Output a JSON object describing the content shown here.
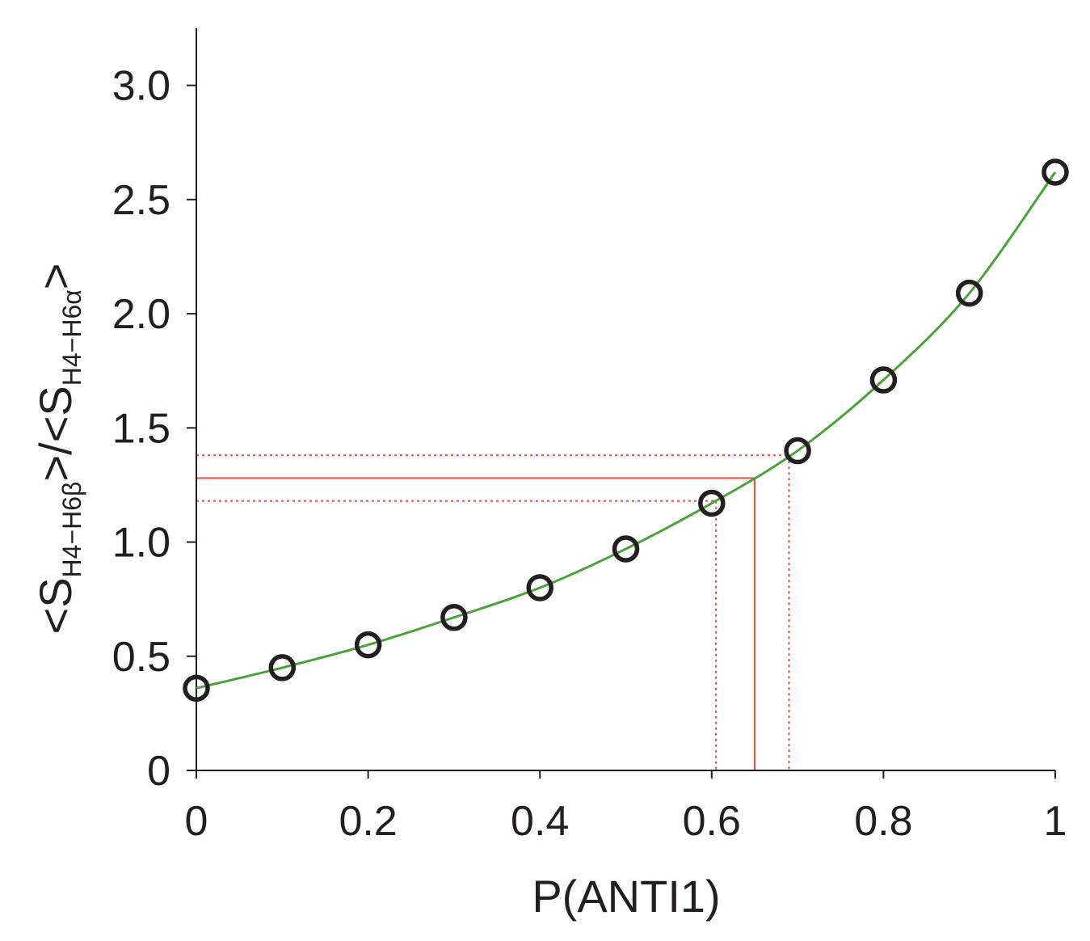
{
  "chart_data": {
    "type": "scatter",
    "title": "",
    "xlabel": "P(ANTI1)",
    "ylabel": {
      "prefix1": "<S",
      "sub1": "H4−H6β",
      "mid": ">/<S",
      "sub2": "H4−H6α",
      "suffix": ">"
    },
    "xlim": [
      0,
      1
    ],
    "ylim": [
      0,
      3.25
    ],
    "x_ticks": [
      0,
      0.2,
      0.4,
      0.6,
      0.8,
      1
    ],
    "x_tick_labels": [
      "0",
      "0.2",
      "0.4",
      "0.6",
      "0.8",
      "1"
    ],
    "y_ticks": [
      0,
      0.5,
      1.0,
      1.5,
      2.0,
      2.5,
      3.0
    ],
    "y_tick_labels": [
      "0",
      "0.5",
      "1.0",
      "1.5",
      "2.0",
      "2.5",
      "3.0"
    ],
    "grid": false,
    "points": {
      "x": [
        0,
        0.1,
        0.2,
        0.3,
        0.4,
        0.5,
        0.6,
        0.7,
        0.8,
        0.9,
        1.0
      ],
      "y": [
        0.36,
        0.45,
        0.55,
        0.67,
        0.8,
        0.97,
        1.17,
        1.4,
        1.71,
        2.09,
        2.62
      ]
    },
    "fit_curve": {
      "color": "#4aa33a"
    },
    "reference_lines": {
      "color": "#e05a4e",
      "solid": {
        "x": 0.65,
        "y": 1.28
      },
      "dotted": [
        {
          "x": 0.605,
          "y": 1.18
        },
        {
          "x": 0.69,
          "y": 1.38
        }
      ]
    },
    "colors": {
      "axis": "#231f20",
      "marker": "#231f20"
    }
  }
}
